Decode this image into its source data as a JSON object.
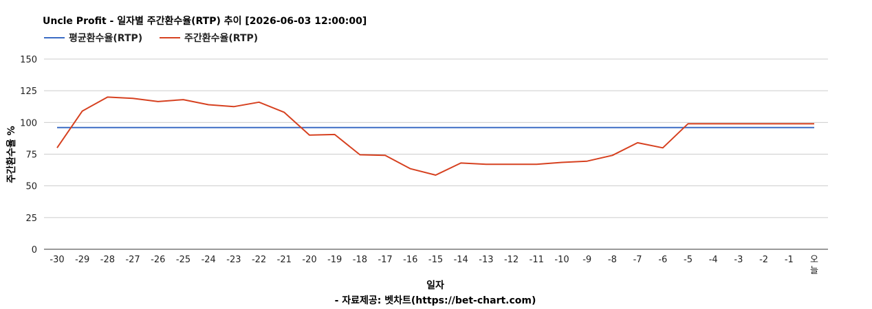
{
  "chart_data": {
    "type": "line",
    "title": "Uncle Profit - 일자별 주간환수율(RTP) 추이 [2026-06-03 12:00:00]",
    "xlabel": "일자",
    "ylabel": "주간환수율 %",
    "credit": "- 자료제공: 벳차트(https://bet-chart.com)",
    "ylim": [
      0,
      150
    ],
    "yticks": [
      0,
      25,
      50,
      75,
      100,
      125,
      150
    ],
    "legend_position": "top-left",
    "grid": true,
    "categories": [
      "-30",
      "-29",
      "-28",
      "-27",
      "-26",
      "-25",
      "-24",
      "-23",
      "-22",
      "-21",
      "-20",
      "-19",
      "-18",
      "-17",
      "-16",
      "-15",
      "-14",
      "-13",
      "-12",
      "-11",
      "-10",
      "-9",
      "-8",
      "-7",
      "-6",
      "-5",
      "-4",
      "-3",
      "-2",
      "-1",
      "오늘"
    ],
    "series": [
      {
        "name": "평균환수율(RTP)",
        "color": "#3a6bc4",
        "values": [
          96,
          96,
          96,
          96,
          96,
          96,
          96,
          96,
          96,
          96,
          96,
          96,
          96,
          96,
          96,
          96,
          96,
          96,
          96,
          96,
          96,
          96,
          96,
          96,
          96,
          96,
          96,
          96,
          96,
          96,
          96
        ]
      },
      {
        "name": "주간환수율(RTP)",
        "color": "#d6401f",
        "values": [
          80,
          109,
          120,
          119,
          116.5,
          118,
          114,
          112.5,
          116,
          108,
          90,
          90.5,
          74.5,
          74,
          63.5,
          58.5,
          68,
          67,
          67,
          67,
          68.5,
          69.5,
          74,
          84,
          80,
          99,
          99,
          99,
          99,
          99,
          99
        ]
      }
    ]
  }
}
